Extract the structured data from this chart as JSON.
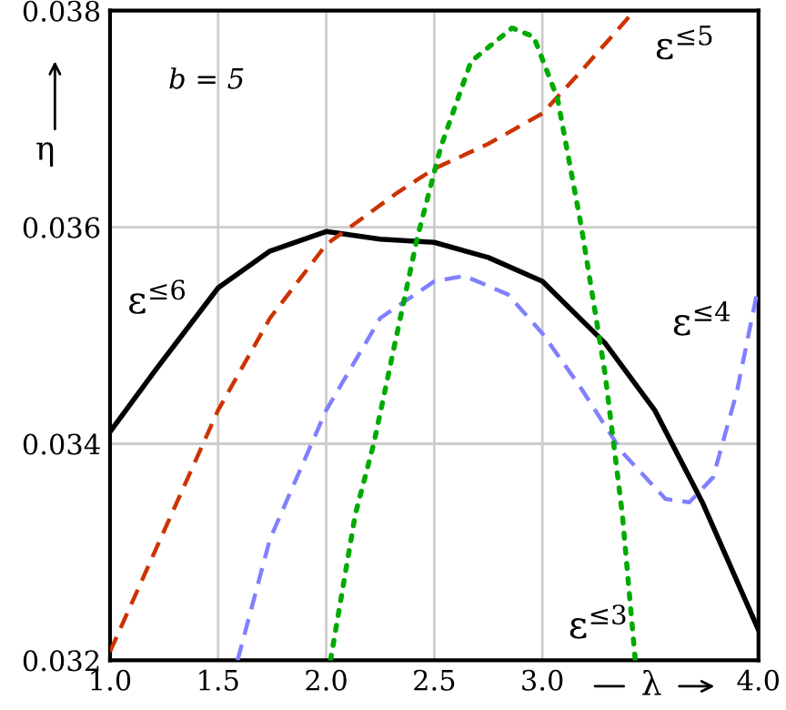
{
  "chart_data": {
    "type": "line",
    "xlabel": "λ",
    "ylabel": "η",
    "annotations": [
      "b = 5"
    ],
    "xlim": [
      1.0,
      4.0
    ],
    "ylim": [
      0.032,
      0.038
    ],
    "xticks": [
      {
        "value": 1.0,
        "label": "1.0"
      },
      {
        "value": 1.5,
        "label": "1.5"
      },
      {
        "value": 2.0,
        "label": "2.0"
      },
      {
        "value": 2.5,
        "label": "2.5"
      },
      {
        "value": 3.0,
        "label": "3.0"
      },
      {
        "value": 4.0,
        "label": "4.0"
      }
    ],
    "yticks": [
      0.032,
      0.034,
      0.036,
      0.038
    ],
    "grid": true,
    "legend": false,
    "marker": "none",
    "series": [
      {
        "name": "ε$^{≤6}$",
        "color": "#000000",
        "line_style": "solid",
        "x": [
          1.0,
          1.21,
          1.5,
          1.74,
          2.0,
          2.25,
          2.5,
          2.75,
          3.0,
          3.29,
          3.52,
          3.74,
          4.0
        ],
        "values": [
          0.03411,
          0.03468,
          0.03544,
          0.03578,
          0.03596,
          0.03589,
          0.03586,
          0.03572,
          0.0355,
          0.03493,
          0.03431,
          0.03346,
          0.03228
        ]
      },
      {
        "name": "ε$^{≤5}$",
        "color": "#cc3300",
        "line_style": "dashed",
        "x": [
          1.0,
          1.26,
          1.5,
          1.74,
          2.0,
          2.33,
          2.5,
          2.75,
          3.0,
          3.17,
          3.4
        ],
        "values": [
          0.03208,
          0.03324,
          0.03431,
          0.03516,
          0.03584,
          0.03632,
          0.03654,
          0.03677,
          0.03705,
          0.03742,
          0.03794
        ]
      },
      {
        "name": "ε$^{≤4}$",
        "color": "#8080ff",
        "line_style": "dashed",
        "x": [
          1.59,
          1.74,
          2.0,
          2.25,
          2.5,
          2.64,
          2.84,
          3.0,
          3.17,
          3.37,
          3.57,
          3.68,
          3.79,
          3.9,
          3.99
        ],
        "values": [
          0.032,
          0.03312,
          0.03431,
          0.03516,
          0.0355,
          0.03555,
          0.03538,
          0.03502,
          0.03454,
          0.03392,
          0.03349,
          0.03346,
          0.03369,
          0.03448,
          0.03536
        ]
      },
      {
        "name": "ε$^{≤3}$",
        "color": "#00aa00",
        "line_style": "dotted",
        "x": [
          2.02,
          2.135,
          2.22,
          2.42,
          2.53,
          2.67,
          2.86,
          2.96,
          3.07,
          3.18,
          3.29,
          3.37,
          3.43
        ],
        "values": [
          0.032,
          0.03335,
          0.034,
          0.03589,
          0.03674,
          0.03753,
          0.03784,
          0.03776,
          0.03719,
          0.03601,
          0.03465,
          0.03335,
          0.032
        ]
      }
    ]
  }
}
